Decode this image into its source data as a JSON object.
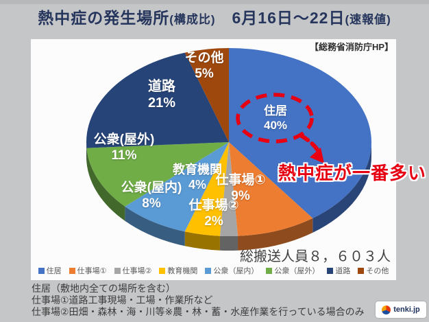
{
  "header": {
    "title_main": "熱中症の発生場所",
    "title_paren1": "(構成比)",
    "title_date": "　6月16日～22日",
    "title_paren2": "(速報値)"
  },
  "panel": {
    "source": "【総務省消防庁HP】",
    "total": "総搬送人員８，６０３人"
  },
  "chart_data": {
    "type": "pie",
    "pie_style": "3d",
    "title": "熱中症の発生場所(構成比) 6月16日～22日(速報値)",
    "source": "総務省消防庁HP",
    "total_transported": 8603,
    "unit": "%",
    "start_angle_deg": 0,
    "direction": "clockwise",
    "legend_position": "bottom",
    "slices": [
      {
        "label": "住居",
        "legend_label": "住居",
        "value": 40,
        "color": "#4472C4"
      },
      {
        "label": "仕事場①",
        "legend_label": "仕事場①",
        "value": 9,
        "color": "#ED7D31"
      },
      {
        "label": "仕事場②",
        "legend_label": "仕事場②",
        "value": 2,
        "color": "#A5A5A5"
      },
      {
        "label": "教育機関",
        "legend_label": "教育機関",
        "value": 4,
        "color": "#FFC000"
      },
      {
        "label": "公衆(屋内)",
        "legend_label": "公衆（屋内）",
        "value": 8,
        "color": "#5B9BD5"
      },
      {
        "label": "公衆(屋外)",
        "legend_label": "公衆（屋外）",
        "value": 11,
        "color": "#70AD47"
      },
      {
        "label": "道路",
        "legend_label": "道路",
        "value": 21,
        "color": "#264478"
      },
      {
        "label": "その他",
        "legend_label": "その他",
        "value": 5,
        "color": "#9E480E"
      }
    ],
    "annotation": {
      "text": "熱中症が一番多い",
      "target_slice": "住居",
      "color": "#e60012"
    }
  },
  "footer": {
    "notes": [
      "住居（敷地内全ての場所を含む）",
      "仕事場①道路工事現場・工場・作業所など",
      "仕事場②田畑・森林・海・川等※農・林・蓄・水産作業を行っている場合のみ"
    ]
  },
  "watermark": {
    "text": "tenki.jp"
  }
}
